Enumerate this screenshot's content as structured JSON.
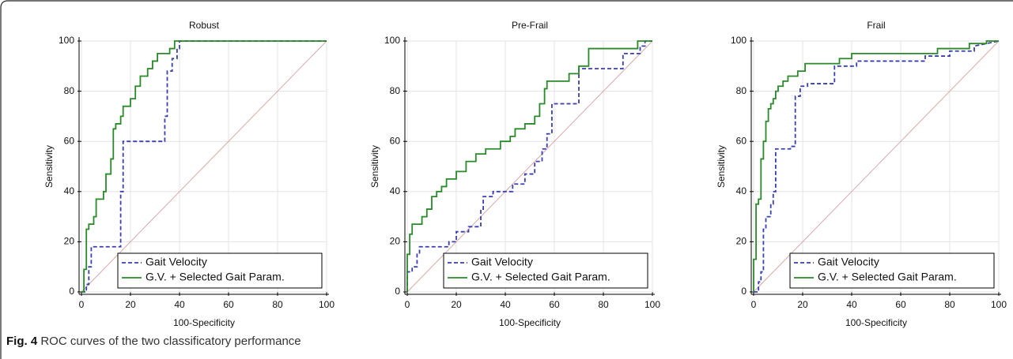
{
  "chart_data": [
    {
      "type": "line",
      "title": "Robust",
      "x_label": "100-Specificity",
      "y_label": "Sensitivity",
      "xlim": [
        0,
        100
      ],
      "ylim": [
        0,
        100
      ],
      "xticks": [
        0,
        20,
        40,
        60,
        80,
        100
      ],
      "yticks": [
        0,
        20,
        40,
        60,
        80,
        100
      ],
      "grid": true,
      "legend": "lower right",
      "reference_line": {
        "color": "#dba9a9"
      },
      "series": [
        {
          "name": "Gait Velocity",
          "color": "#3a3fb0",
          "dashed": true,
          "x": [
            0,
            2,
            2,
            3,
            3,
            4,
            4,
            16,
            16,
            17,
            17,
            34,
            34,
            35,
            35,
            37,
            37,
            39,
            39,
            40,
            40,
            100
          ],
          "values": [
            0,
            0,
            3,
            3,
            10,
            10,
            18,
            18,
            40,
            40,
            60,
            60,
            70,
            70,
            88,
            88,
            93,
            93,
            97,
            97,
            100,
            100
          ]
        },
        {
          "name": "G.V. + Selected Gait Param.",
          "color": "#2a8a2a",
          "dashed": false,
          "x": [
            0,
            1,
            1,
            2,
            2,
            3,
            3,
            5,
            5,
            6,
            6,
            9,
            9,
            10,
            10,
            12,
            12,
            13,
            13,
            14,
            14,
            16,
            16,
            17,
            17,
            20,
            20,
            22,
            22,
            24,
            24,
            27,
            27,
            29,
            29,
            31,
            31,
            36,
            36,
            38,
            38,
            100
          ],
          "values": [
            0,
            0,
            9,
            9,
            25,
            25,
            27,
            27,
            30,
            30,
            37,
            37,
            40,
            40,
            47,
            47,
            53,
            53,
            65,
            65,
            67,
            67,
            70,
            70,
            74,
            74,
            77,
            77,
            82,
            82,
            86,
            86,
            89,
            89,
            92,
            92,
            95,
            95,
            97,
            97,
            100,
            100
          ]
        }
      ]
    },
    {
      "type": "line",
      "title": "Pre-Frail",
      "x_label": "100-Specificity",
      "y_label": "Sensitivity",
      "xlim": [
        0,
        100
      ],
      "ylim": [
        0,
        100
      ],
      "xticks": [
        0,
        20,
        40,
        60,
        80,
        100
      ],
      "yticks": [
        0,
        20,
        40,
        60,
        80,
        100
      ],
      "grid": true,
      "legend": "lower right",
      "reference_line": {
        "color": "#dba9a9"
      },
      "series": [
        {
          "name": "Gait Velocity",
          "color": "#3a3fb0",
          "dashed": true,
          "x": [
            0,
            0,
            2,
            2,
            4,
            4,
            5,
            5,
            17,
            17,
            20,
            20,
            25,
            25,
            30,
            30,
            31,
            31,
            35,
            35,
            43,
            43,
            48,
            48,
            52,
            52,
            55,
            55,
            57,
            57,
            59,
            59,
            70,
            70,
            88,
            88,
            95,
            95,
            97,
            97,
            100
          ],
          "values": [
            0,
            8,
            8,
            10,
            10,
            15,
            15,
            18,
            18,
            20,
            20,
            24,
            24,
            26,
            26,
            33,
            33,
            38,
            38,
            40,
            40,
            43,
            43,
            47,
            47,
            52,
            52,
            57,
            57,
            63,
            63,
            75,
            75,
            89,
            89,
            95,
            95,
            98,
            98,
            100,
            100
          ]
        },
        {
          "name": "G.V. + Selected Gait Param.",
          "color": "#2a8a2a",
          "dashed": false,
          "x": [
            0,
            0,
            1,
            1,
            2,
            2,
            6,
            6,
            8,
            8,
            10,
            10,
            12,
            12,
            14,
            14,
            16,
            16,
            20,
            20,
            24,
            24,
            28,
            28,
            32,
            32,
            38,
            38,
            42,
            42,
            44,
            44,
            48,
            48,
            52,
            52,
            54,
            54,
            56,
            56,
            57,
            57,
            66,
            66,
            70,
            70,
            74,
            74,
            94,
            94,
            100
          ],
          "values": [
            0,
            15,
            15,
            23,
            23,
            27,
            27,
            30,
            30,
            33,
            33,
            38,
            38,
            40,
            40,
            42,
            42,
            45,
            45,
            48,
            48,
            52,
            52,
            55,
            55,
            57,
            57,
            60,
            60,
            62,
            62,
            65,
            65,
            67,
            67,
            70,
            70,
            75,
            75,
            81,
            81,
            84,
            84,
            87,
            87,
            90,
            90,
            97,
            97,
            100,
            100
          ]
        }
      ]
    },
    {
      "type": "line",
      "title": "Frail",
      "x_label": "100-Specificity",
      "y_label": "Sensitivity",
      "xlim": [
        0,
        100
      ],
      "ylim": [
        0,
        100
      ],
      "xticks": [
        0,
        20,
        40,
        60,
        80,
        100
      ],
      "yticks": [
        0,
        20,
        40,
        60,
        80,
        100
      ],
      "grid": true,
      "legend": "lower right",
      "reference_line": {
        "color": "#dba9a9"
      },
      "series": [
        {
          "name": "Gait Velocity",
          "color": "#3a3fb0",
          "dashed": true,
          "x": [
            0,
            2,
            2,
            3,
            3,
            4,
            4,
            5,
            5,
            7,
            7,
            8,
            8,
            9,
            9,
            15,
            15,
            17,
            17,
            19,
            19,
            22,
            22,
            33,
            33,
            42,
            42,
            70,
            70,
            80,
            80,
            90,
            90,
            100
          ],
          "values": [
            0,
            0,
            4,
            4,
            8,
            8,
            25,
            25,
            30,
            30,
            35,
            35,
            40,
            40,
            57,
            57,
            58,
            58,
            78,
            78,
            82,
            82,
            83,
            83,
            90,
            90,
            92,
            92,
            94,
            94,
            96,
            96,
            98,
            100
          ]
        },
        {
          "name": "G.V. + Selected Gait Param.",
          "color": "#2a8a2a",
          "dashed": false,
          "x": [
            0,
            0,
            1,
            1,
            2,
            2,
            3,
            3,
            4,
            4,
            5,
            5,
            6,
            6,
            7,
            7,
            8,
            8,
            9,
            9,
            10,
            10,
            12,
            12,
            14,
            14,
            18,
            18,
            21,
            21,
            35,
            35,
            40,
            40,
            75,
            75,
            88,
            88,
            95,
            95,
            100
          ],
          "values": [
            0,
            13,
            13,
            35,
            35,
            37,
            37,
            53,
            53,
            60,
            60,
            68,
            68,
            73,
            73,
            75,
            75,
            77,
            77,
            80,
            80,
            82,
            82,
            84,
            84,
            86,
            86,
            88,
            88,
            91,
            91,
            93,
            93,
            95,
            95,
            97,
            97,
            99,
            99,
            100,
            100
          ]
        }
      ]
    }
  ],
  "caption": {
    "label": "Fig. 4",
    "text": "ROC curves of the two classificatory performance"
  }
}
